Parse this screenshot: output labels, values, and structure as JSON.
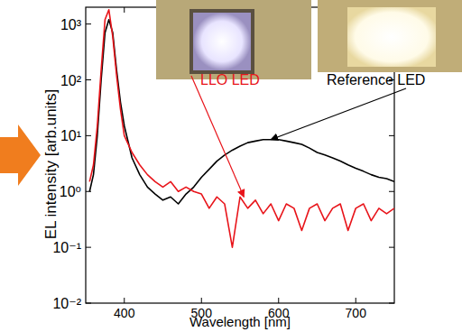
{
  "chart_data": {
    "type": "line",
    "x_label": "Wavelength [nm]",
    "y_label": "EL intensity [arb.units]",
    "log": "y",
    "grid": false,
    "xlim": [
      350,
      750
    ],
    "xticks": [
      400,
      500,
      600,
      700
    ],
    "ylim": [
      0.01,
      2000
    ],
    "yticks": [
      {
        "value": 0.01,
        "label": "10⁻²"
      },
      {
        "value": 0.1,
        "label": "10⁻¹"
      },
      {
        "value": 1,
        "label": "10⁰"
      },
      {
        "value": 10,
        "label": "10¹"
      },
      {
        "value": 100,
        "label": "10²"
      },
      {
        "value": 1000,
        "label": "10³"
      }
    ],
    "x": [
      355,
      360,
      365,
      370,
      375,
      380,
      385,
      390,
      395,
      400,
      410,
      420,
      430,
      440,
      450,
      460,
      470,
      480,
      490,
      500,
      510,
      520,
      530,
      540,
      550,
      560,
      570,
      580,
      590,
      600,
      610,
      620,
      630,
      640,
      650,
      660,
      670,
      680,
      690,
      700,
      710,
      720,
      730,
      740,
      750
    ],
    "series": [
      {
        "name": "Reference LED",
        "color": "#000000",
        "values": [
          1.0,
          2,
          10,
          100,
          700,
          1200,
          700,
          150,
          40,
          15,
          4,
          2,
          1.2,
          0.9,
          0.7,
          0.8,
          0.6,
          0.9,
          1.2,
          1.8,
          2.5,
          3.5,
          4.5,
          5.5,
          6.5,
          7.5,
          8,
          8.5,
          8.5,
          8.5,
          8,
          7.5,
          7,
          6,
          5,
          4.5,
          4,
          3.5,
          3,
          2.6,
          2.3,
          2,
          1.8,
          1.7,
          1.5
        ]
      },
      {
        "name": "LLO LED",
        "color": "#e8141a",
        "values": [
          1.5,
          3,
          15,
          150,
          1200,
          1800,
          600,
          120,
          30,
          10,
          5,
          3,
          2,
          1.5,
          1.2,
          1.5,
          1,
          1.2,
          1.0,
          0.9,
          0.5,
          0.8,
          0.6,
          0.1,
          0.8,
          0.5,
          0.7,
          0.4,
          0.6,
          0.3,
          0.6,
          0.5,
          0.2,
          0.5,
          0.6,
          0.3,
          0.5,
          0.6,
          0.2,
          0.5,
          0.6,
          0.3,
          0.5,
          0.4,
          0.5
        ]
      }
    ],
    "annotations": [
      {
        "text": "LLO LED",
        "color": "#e8141a",
        "x": 555,
        "y": 0.8
      },
      {
        "text": "Reference LED",
        "color": "#000000",
        "x": 590,
        "y": 8.5
      }
    ]
  }
}
